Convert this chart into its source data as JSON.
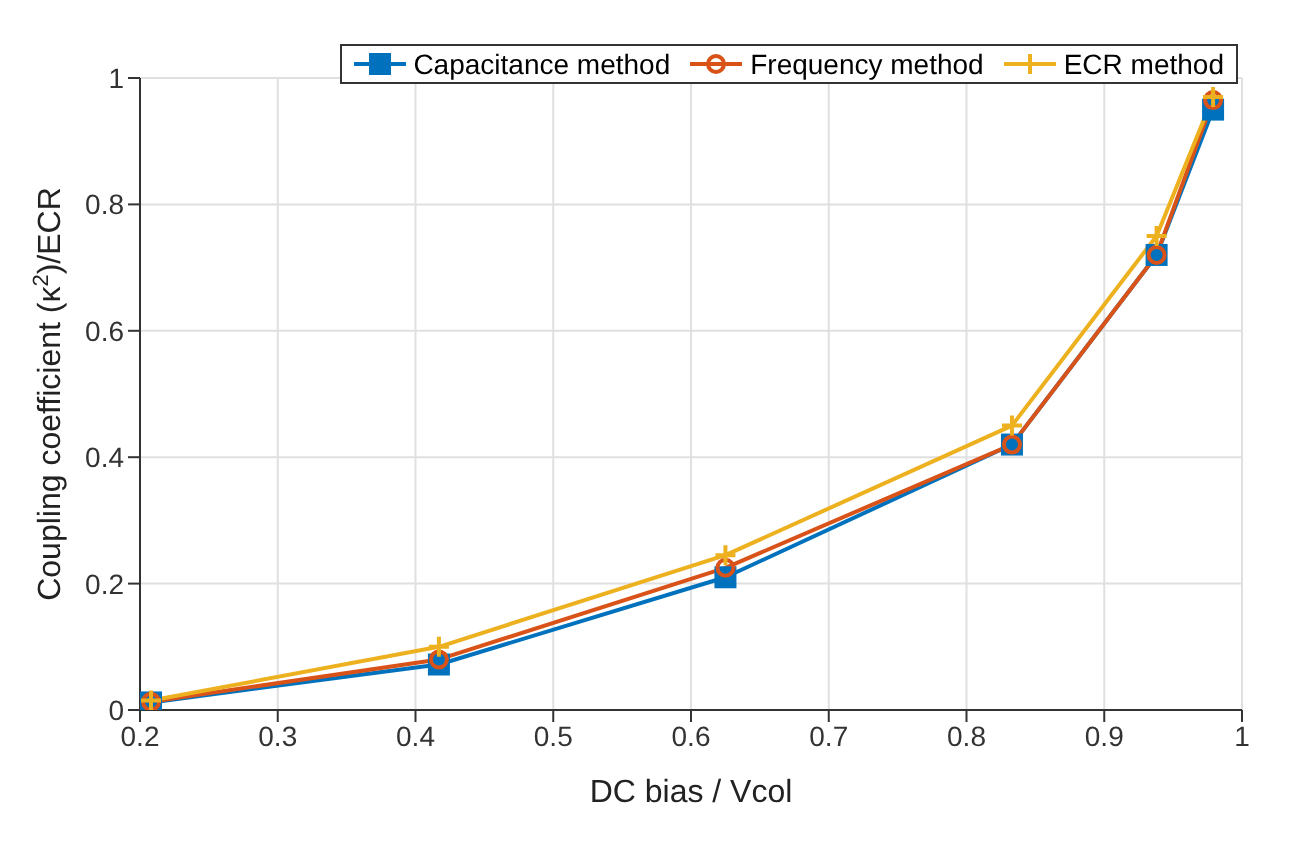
{
  "chart_data": {
    "type": "line",
    "xlabel": "DC bias / Vcol",
    "ylabel": "Coupling coefficient (κ$^{2}$)/ECR",
    "x": [
      0.208,
      0.417,
      0.625,
      0.833,
      0.938,
      0.979
    ],
    "series": [
      {
        "name": "Capacitance method",
        "color": "#0072bd",
        "marker": "square",
        "values": [
          0.012,
          0.072,
          0.21,
          0.42,
          0.72,
          0.95
        ]
      },
      {
        "name": "Frequency method",
        "color": "#d95319",
        "marker": "circle",
        "values": [
          0.013,
          0.08,
          0.225,
          0.42,
          0.72,
          0.965
        ]
      },
      {
        "name": "ECR method",
        "color": "#edb120",
        "marker": "cross",
        "values": [
          0.015,
          0.1,
          0.245,
          0.45,
          0.75,
          0.97
        ]
      }
    ],
    "xlim": [
      0.2,
      1
    ],
    "xticks": [
      0.2,
      0.3,
      0.4,
      0.5,
      0.6,
      0.7,
      0.8,
      0.9,
      1
    ],
    "ylim": [
      0,
      1
    ],
    "yticks": [
      0,
      0.2,
      0.4,
      0.6,
      0.8,
      1
    ],
    "grid": true,
    "legend": "top",
    "line_style": "solid"
  }
}
